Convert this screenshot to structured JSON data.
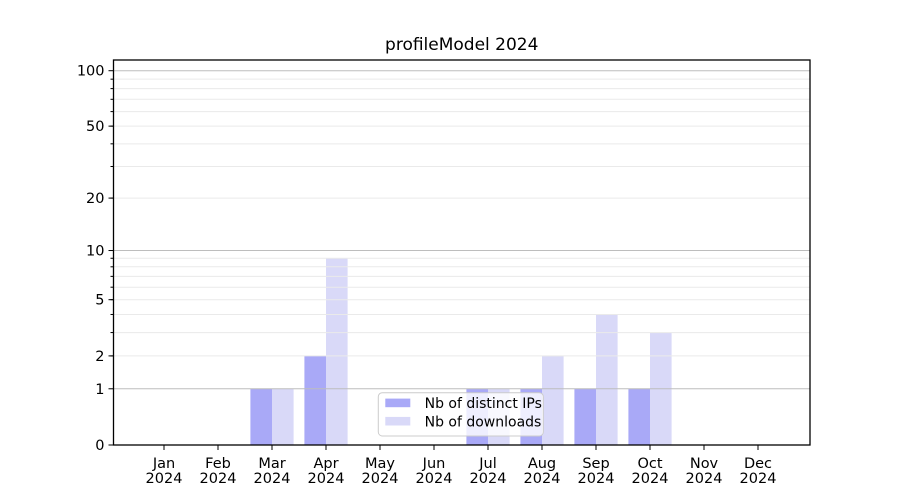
{
  "title": "profileModel 2024",
  "chart_data": {
    "type": "bar",
    "title": "profileModel 2024",
    "categories": [
      "Jan",
      "Feb",
      "Mar",
      "Apr",
      "May",
      "Jun",
      "Jul",
      "Aug",
      "Sep",
      "Oct",
      "Nov",
      "Dec"
    ],
    "category_year": "2024",
    "series": [
      {
        "name": "Nb of distinct IPs",
        "color": "#a9a9f7",
        "values": [
          0,
          0,
          1,
          2,
          0,
          0,
          1,
          1,
          1,
          1,
          0,
          0
        ]
      },
      {
        "name": "Nb of downloads",
        "color": "#d9d9f8",
        "values": [
          0,
          0,
          1,
          9,
          0,
          0,
          1,
          2,
          4,
          3,
          0,
          0
        ]
      }
    ],
    "xlabel": "",
    "ylabel": "",
    "yscale": "log1p",
    "ylim": [
      0,
      114
    ],
    "y_ticks": [
      0,
      1,
      2,
      5,
      10,
      20,
      50,
      100
    ],
    "y_tick_labels": [
      "0",
      "1",
      "2",
      "5",
      "10",
      "20",
      "50",
      "100"
    ],
    "grid": true,
    "legend": {
      "entries": [
        "Nb of distinct IPs",
        "Nb of downloads"
      ],
      "position": "lower center"
    }
  },
  "colors": {
    "background": "#ffffff",
    "axis": "#000000",
    "major_grid": "#bdbdbd",
    "minor_grid": "#eaeaea",
    "legend_border": "#cccccc",
    "legend_background": "rgba(255,255,255,0.8)",
    "text": "#000000"
  }
}
